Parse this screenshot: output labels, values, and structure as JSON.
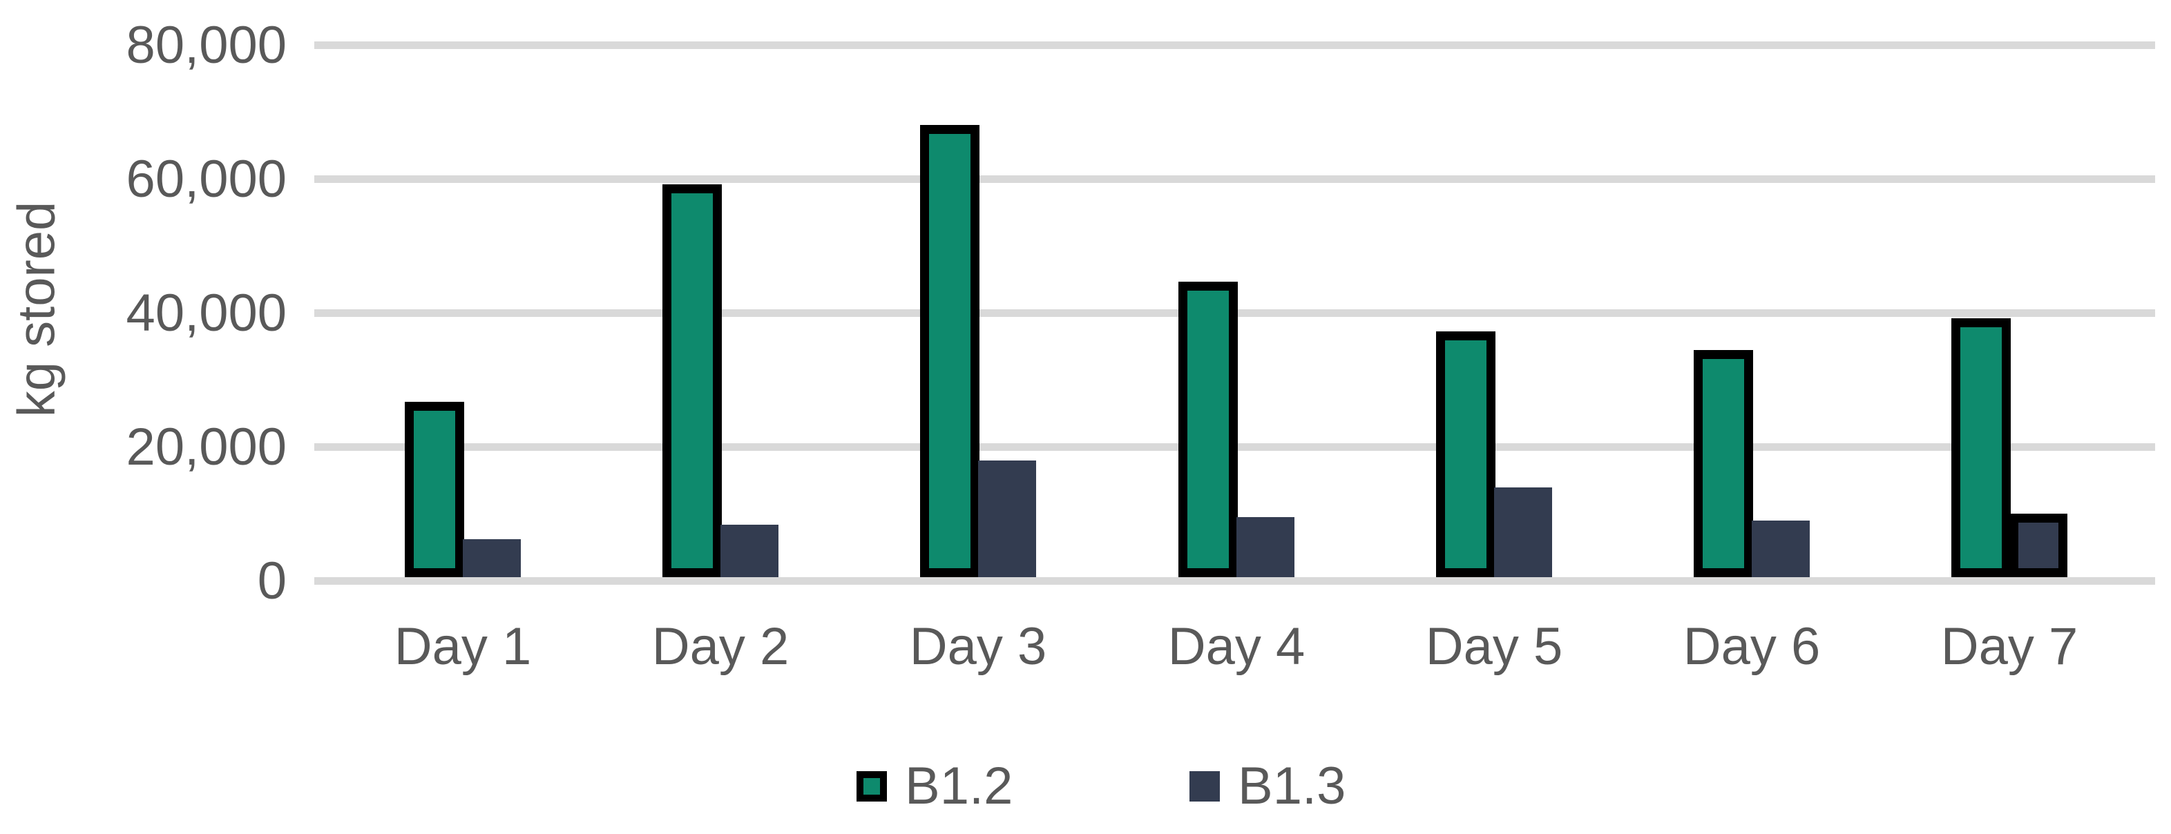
{
  "chart_data": {
    "type": "bar",
    "title": "",
    "xlabel": "",
    "ylabel": "kg stored",
    "categories": [
      "Day 1",
      "Day 2",
      "Day 3",
      "Day 4",
      "Day 5",
      "Day 6",
      "Day 7"
    ],
    "series": [
      {
        "name": "B1.2",
        "color": "#0e8a6d",
        "border_color": "#000000",
        "values": [
          26200,
          58700,
          67500,
          44100,
          36700,
          33900,
          38700
        ]
      },
      {
        "name": "B1.3",
        "color": "#333c50",
        "outlined_indices": [
          6
        ],
        "outline_color": "#000000",
        "values": [
          5700,
          7800,
          17400,
          9000,
          13400,
          8500,
          9500
        ]
      }
    ],
    "ylim": [
      0,
      80000
    ],
    "ytick_values": [
      0,
      20000,
      40000,
      60000,
      80000
    ],
    "yticks": [
      "0",
      "20,000",
      "40,000",
      "60,000",
      "80,000"
    ],
    "grid": true,
    "legend_position": "bottom",
    "gridline_color": "#d9d9d9",
    "axis_text_color": "#595959",
    "legend_text_color": "#595959",
    "background_color": "#ffffff"
  }
}
